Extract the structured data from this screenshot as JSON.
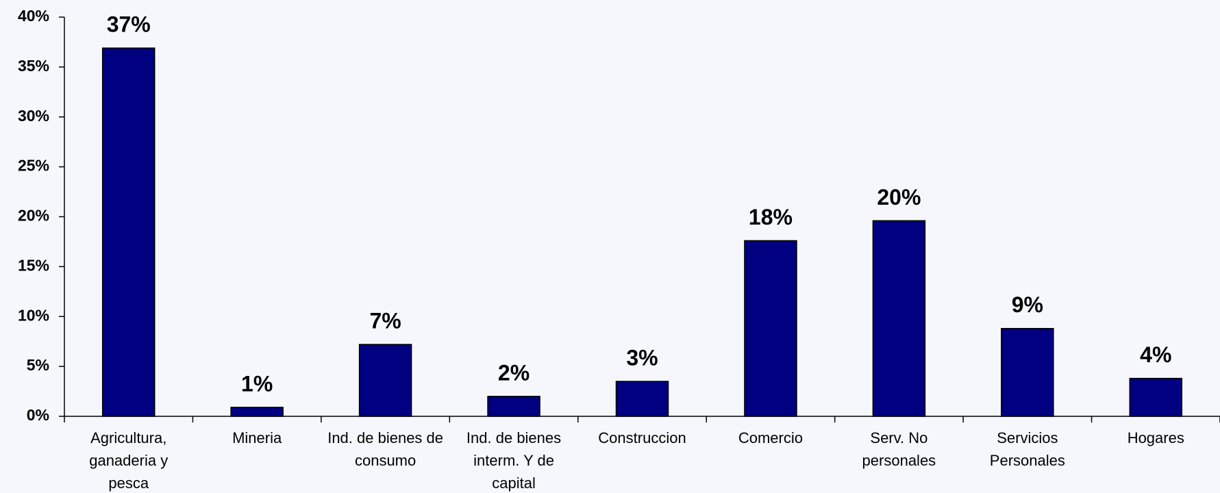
{
  "chart_data": {
    "type": "bar",
    "categories": [
      "Agricultura, ganaderia y pesca",
      "Mineria",
      "Ind. de bienes de consumo",
      "Ind. de bienes interm. Y de capital",
      "Construccion",
      "Comercio",
      "Serv. No personales",
      "Servicios Personales",
      "Hogares"
    ],
    "values": [
      36.9,
      0.9,
      7.2,
      2.0,
      3.5,
      17.6,
      19.6,
      8.8,
      3.8
    ],
    "value_labels": [
      "37%",
      "1%",
      "7%",
      "2%",
      "3%",
      "18%",
      "20%",
      "9%",
      "4%"
    ],
    "color": "#000080",
    "ylim": [
      0,
      40
    ],
    "yticks": [
      {
        "value": 0,
        "label": "0%"
      },
      {
        "value": 5,
        "label": "5%"
      },
      {
        "value": 10,
        "label": "10%"
      },
      {
        "value": 15,
        "label": "15%"
      },
      {
        "value": 20,
        "label": "20%"
      },
      {
        "value": 25,
        "label": "25%"
      },
      {
        "value": 30,
        "label": "30%"
      },
      {
        "value": 35,
        "label": "35%"
      },
      {
        "value": 40,
        "label": "40%"
      }
    ]
  }
}
